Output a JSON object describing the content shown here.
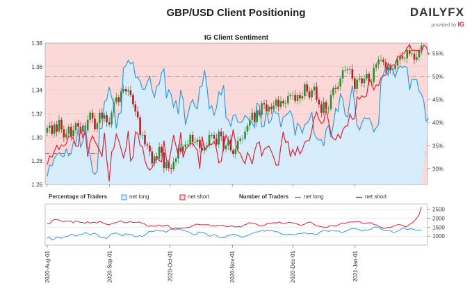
{
  "title": "GBP/USD Client Positioning",
  "logo": {
    "text": "DAILYFX",
    "provided_by": "provided by",
    "provider": "IG"
  },
  "legend": {
    "pct_label": "Percentage of Traders",
    "net_long": "net long",
    "net_short": "net short",
    "num_label": "Number of Traders",
    "net_long_2": "net long",
    "net_short_2": "net short"
  },
  "colors": {
    "long": "#3399dd",
    "short": "#dd2233",
    "long_fill": "#d7ecfb",
    "short_fill": "#fbd9d9",
    "bull": "#2f8f2f",
    "bear": "#b22222"
  },
  "chart_data": [
    {
      "type": "line",
      "title": "IG Client Sentiment",
      "left_axis": {
        "ylim": [
          1.26,
          1.38
        ],
        "ticks": [
          "1.38",
          "1.36",
          "1.34",
          "1.32",
          "1.30",
          "1.28",
          "1.26"
        ]
      },
      "right_axis": {
        "ylim": [
          26.6,
          57.2
        ],
        "ticks": [
          "55%",
          "50%",
          "45%",
          "40%",
          "35%",
          "30%"
        ]
      },
      "x_ticks": [
        "2020-Aug-01",
        "2020-Sep-01",
        "2020-Oct-01",
        "2020-Nov-01",
        "2020-Dec-01",
        "2021-Jan-01"
      ],
      "x_range_days": [
        -1,
        189
      ],
      "series": [
        {
          "name": "GBP/USD price (candles)",
          "close": [
            1.308,
            1.31,
            1.303,
            1.311,
            1.305,
            1.315,
            1.307,
            1.3,
            1.303,
            1.309,
            1.301,
            1.306,
            1.312,
            1.309,
            1.305,
            1.31,
            1.306,
            1.315,
            1.321,
            1.316,
            1.307,
            1.312,
            1.321,
            1.316,
            1.319,
            1.313,
            1.311,
            1.321,
            1.33,
            1.334,
            1.33,
            1.339,
            1.341,
            1.339,
            1.34,
            1.336,
            1.328,
            1.322,
            1.317,
            1.302,
            1.302,
            1.294,
            1.293,
            1.288,
            1.278,
            1.284,
            1.282,
            1.292,
            1.287,
            1.274,
            1.279,
            1.274,
            1.273,
            1.279,
            1.282,
            1.291,
            1.288,
            1.292,
            1.294,
            1.294,
            1.302,
            1.296,
            1.296,
            1.298,
            1.291,
            1.289,
            1.292,
            1.293,
            1.302,
            1.302,
            1.299,
            1.294,
            1.305,
            1.301,
            1.29,
            1.293,
            1.298,
            1.289,
            1.286,
            1.29,
            1.297,
            1.299,
            1.299,
            1.305,
            1.31,
            1.315,
            1.321,
            1.313,
            1.323,
            1.319,
            1.329,
            1.328,
            1.322,
            1.326,
            1.324,
            1.327,
            1.332,
            1.326,
            1.331,
            1.329,
            1.329,
            1.335,
            1.336,
            1.336,
            1.331,
            1.336,
            1.333,
            1.335,
            1.345,
            1.339,
            1.334,
            1.34,
            1.343,
            1.332,
            1.328,
            1.321,
            1.33,
            1.324,
            1.324,
            1.336,
            1.342,
            1.341,
            1.343,
            1.35,
            1.357,
            1.357,
            1.358,
            1.358,
            1.35,
            1.341,
            1.349,
            1.35,
            1.346,
            1.35,
            1.354,
            1.347,
            1.347,
            1.359,
            1.362,
            1.366,
            1.366,
            1.364,
            1.357,
            1.36,
            1.357,
            1.358,
            1.361,
            1.366,
            1.369,
            1.367,
            1.367,
            1.374,
            1.371,
            1.371,
            1.366,
            1.368,
            1.374,
            1.378
          ]
        },
        {
          "name": "net long %",
          "values": [
            28.4,
            30.8,
            30.6,
            32.3,
            33.0,
            33.5,
            32.8,
            32.6,
            34.3,
            32.8,
            33.3,
            35.8,
            35.4,
            38.8,
            34.7,
            35.9,
            39.4,
            34.6,
            33.2,
            29.4,
            28.8,
            29.5,
            38.7,
            38.8,
            44.5,
            45.0,
            47.7,
            45.6,
            43.8,
            38.7,
            42.0,
            42.1,
            51.8,
            52.3,
            53.5,
            52.7,
            53.1,
            49.8,
            49.7,
            49.0,
            47.2,
            47.2,
            48.8,
            50.0,
            47.0,
            45.5,
            47.9,
            48.3,
            50.8,
            51.6,
            45.3,
            47.1,
            46.1,
            43.3,
            44.8,
            41.8,
            47.1,
            44.9,
            39.5,
            41.7,
            43.9,
            45.0,
            43.4,
            43.0,
            47.7,
            47.9,
            51.4,
            47.7,
            43.0,
            43.7,
            41.6,
            43.2,
            46.6,
            46.0,
            48.1,
            41.1,
            40.6,
            39.2,
            41.5,
            41.7,
            40.1,
            40.0,
            40.3,
            41.6,
            41.0,
            40.4,
            39.9,
            38.9,
            44.2,
            43.7,
            39.1,
            39.2,
            42.5,
            39.9,
            40.6,
            42.8,
            42.0,
            42.0,
            39.0,
            41.2,
            41.5,
            42.0,
            42.6,
            41.1,
            37.2,
            39.9,
            39.2,
            37.7,
            39.5,
            39.9,
            40.6,
            42.3,
            37.6,
            36.6,
            36.2,
            36.3,
            34.9,
            38.5,
            39.4,
            36.8,
            39.5,
            43.1,
            42.4,
            46.2,
            45.1,
            41.6,
            41.2,
            44.9,
            48.0,
            43.9,
            39.4,
            38.4,
            39.9,
            41.1,
            40.8,
            41.0,
            39.9,
            38.0,
            38.9,
            39.6,
            48.9,
            50.5,
            51.8,
            50.2,
            52.6,
            51.3,
            49.8,
            51.5,
            52.3,
            51.9,
            52.2,
            51.9,
            47.1,
            49.4,
            49.3,
            49.3,
            46.8,
            46.2,
            44.6,
            40.3,
            41.0
          ]
        },
        {
          "name": "net short %",
          "values": [
            30.9,
            32.8,
            32.5,
            33.8,
            35.1,
            34.2,
            35.2,
            34.9,
            35.4,
            37.1,
            37.0,
            36.5,
            34.9,
            34.9,
            38.8,
            36.7,
            37.9,
            32.6,
            35.8,
            37.1,
            36.0,
            35.0,
            34.0,
            32.6,
            37.8,
            32.0,
            27.3,
            33.6,
            34.5,
            37.5,
            36.1,
            34.3,
            32.4,
            34.3,
            38.2,
            31.7,
            32.5,
            38.0,
            37.6,
            35.0,
            34.8,
            31.8,
            30.3,
            29.7,
            30.3,
            31.6,
            32.3,
            31.8,
            31.5,
            36.1,
            32.0,
            31.3,
            34.1,
            37.3,
            35.0,
            32.8,
            37.9,
            32.4,
            34.2,
            34.8,
            35.3,
            35.6,
            34.7,
            34.0,
            30.0,
            37.0,
            34.0,
            34.6,
            35.5,
            35.2,
            35.9,
            34.3,
            31.3,
            31.6,
            34.8,
            37.3,
            36.3,
            35.0,
            38.5,
            35.7,
            33.8,
            33.3,
            32.0,
            31.1,
            33.5,
            32.6,
            31.0,
            33.9,
            35.5,
            35.8,
            32.8,
            34.2,
            34.6,
            34.9,
            33.8,
            32.5,
            30.8,
            30.8,
            34.8,
            38.0,
            35.7,
            35.9,
            32.6,
            34.2,
            32.9,
            34.8,
            33.2,
            34.1,
            35.7,
            36.1,
            36.1,
            38.4,
            41.0,
            42.3,
            40.7,
            39.8,
            40.2,
            42.9,
            40.3,
            37.6,
            36.5,
            36.3,
            37.5,
            36.6,
            38.4,
            39.2,
            39.3,
            41.9,
            40.7,
            40.9,
            45.6,
            45.1,
            45.8,
            45.5,
            45.8,
            49.6,
            48.7,
            47.1,
            48.2,
            48.0,
            49.7,
            50.1,
            50.3,
            52.8,
            52.2,
            52.5,
            52.5,
            54.4,
            54.3,
            54.8,
            55.2,
            56.2,
            56.9,
            55.6,
            55.7,
            55.6,
            55.6,
            55.3,
            56.8,
            56.4,
            54.7
          ]
        }
      ]
    },
    {
      "type": "line",
      "title": "Number of Traders",
      "ylim": [
        500,
        2800
      ],
      "y_ticks": [
        "2500",
        "2000",
        "1500",
        "1000"
      ],
      "series": [
        {
          "name": "net long",
          "values": [
            887,
            937,
            791,
            834,
            939,
            917,
            879,
            956,
            970,
            1008,
            1089,
            1092,
            1007,
            1054,
            1098,
            1103,
            1196,
            1172,
            1063,
            1131,
            1161,
            1099,
            971,
            910,
            921,
            858,
            987,
            1123,
            1139,
            1182,
            1126,
            1064,
            1021,
            1135,
            1101,
            1099,
            1065,
            975,
            962,
            1033,
            974,
            1036,
            1122,
            1262,
            1276,
            1259,
            1323,
            1296,
            1293,
            1297,
            1227,
            1285,
            1399,
            1368,
            1357,
            1391,
            1392,
            1325,
            1300,
            1267,
            1212,
            1142,
            1064,
            1119,
            1233,
            1196,
            1205,
            1134,
            1024,
            986,
            1078,
            1081,
            964,
            918,
            905,
            912,
            1023,
            1055,
            1093,
            1109,
            1051,
            1011,
            947,
            956,
            1011,
            1058,
            1118,
            1176,
            1233,
            1242,
            1293,
            1316,
            1276,
            1333,
            1289,
            1320,
            1247,
            1258,
            1183,
            1119,
            1100,
            1068,
            1113,
            1103,
            1086,
            1080,
            1158,
            1123,
            1182,
            1176,
            1136,
            1130,
            1145,
            1096,
            1089,
            1222,
            1283,
            1324,
            1287,
            1269,
            1313,
            1305,
            1276,
            1305,
            1210,
            1223,
            1281,
            1320,
            1400,
            1434,
            1421,
            1386,
            1341,
            1280,
            1348,
            1327,
            1367,
            1418,
            1507,
            1513,
            1470,
            1406,
            1327,
            1303,
            1309,
            1296,
            1214,
            1223,
            1297,
            1359,
            1451,
            1431,
            1360,
            1414,
            1404,
            1365,
            1325,
            1324,
            1352
          ]
        },
        {
          "name": "net short",
          "values": [
            1716,
            1699,
            1828,
            1926,
            1924,
            1895,
            1836,
            1811,
            1851,
            1830,
            1850,
            1739,
            1852,
            1825,
            1769,
            1765,
            1725,
            1804,
            1732,
            1762,
            1774,
            1735,
            1820,
            1781,
            1704,
            1668,
            1632,
            1683,
            1729,
            1756,
            1798,
            1866,
            1799,
            1742,
            1765,
            1832,
            1769,
            1770,
            1773,
            1787,
            1727,
            1709,
            1582,
            1545,
            1591,
            1566,
            1554,
            1629,
            1581,
            1557,
            1598,
            1611,
            1480,
            1406,
            1442,
            1441,
            1447,
            1439,
            1444,
            1490,
            1488,
            1564,
            1612,
            1674,
            1661,
            1631,
            1638,
            1632,
            1648,
            1588,
            1586,
            1557,
            1601,
            1602,
            1617,
            1555,
            1528,
            1552,
            1582,
            1524,
            1523,
            1533,
            1514,
            1618,
            1653,
            1746,
            1738,
            1698,
            1696,
            1616,
            1572,
            1592,
            1625,
            1713,
            1719,
            1728,
            1757,
            1734,
            1798,
            1710,
            1699,
            1738,
            1772,
            1749,
            1741,
            1706,
            1650,
            1602,
            1641,
            1684,
            1772,
            1786,
            1729,
            1620,
            1581,
            1549,
            1515,
            1500,
            1488,
            1556,
            1591,
            1593,
            1565,
            1634,
            1716,
            1738,
            1714,
            1774,
            1800,
            1785,
            1814,
            1812,
            1815,
            1714,
            1722,
            1734,
            1748,
            1744,
            1641,
            1626,
            1555,
            1478,
            1433,
            1457,
            1502,
            1485,
            1559,
            1603,
            1643,
            1640,
            1608,
            1523,
            1558,
            1662,
            1734,
            1846,
            2014,
            2204,
            2628
          ]
        }
      ]
    }
  ]
}
